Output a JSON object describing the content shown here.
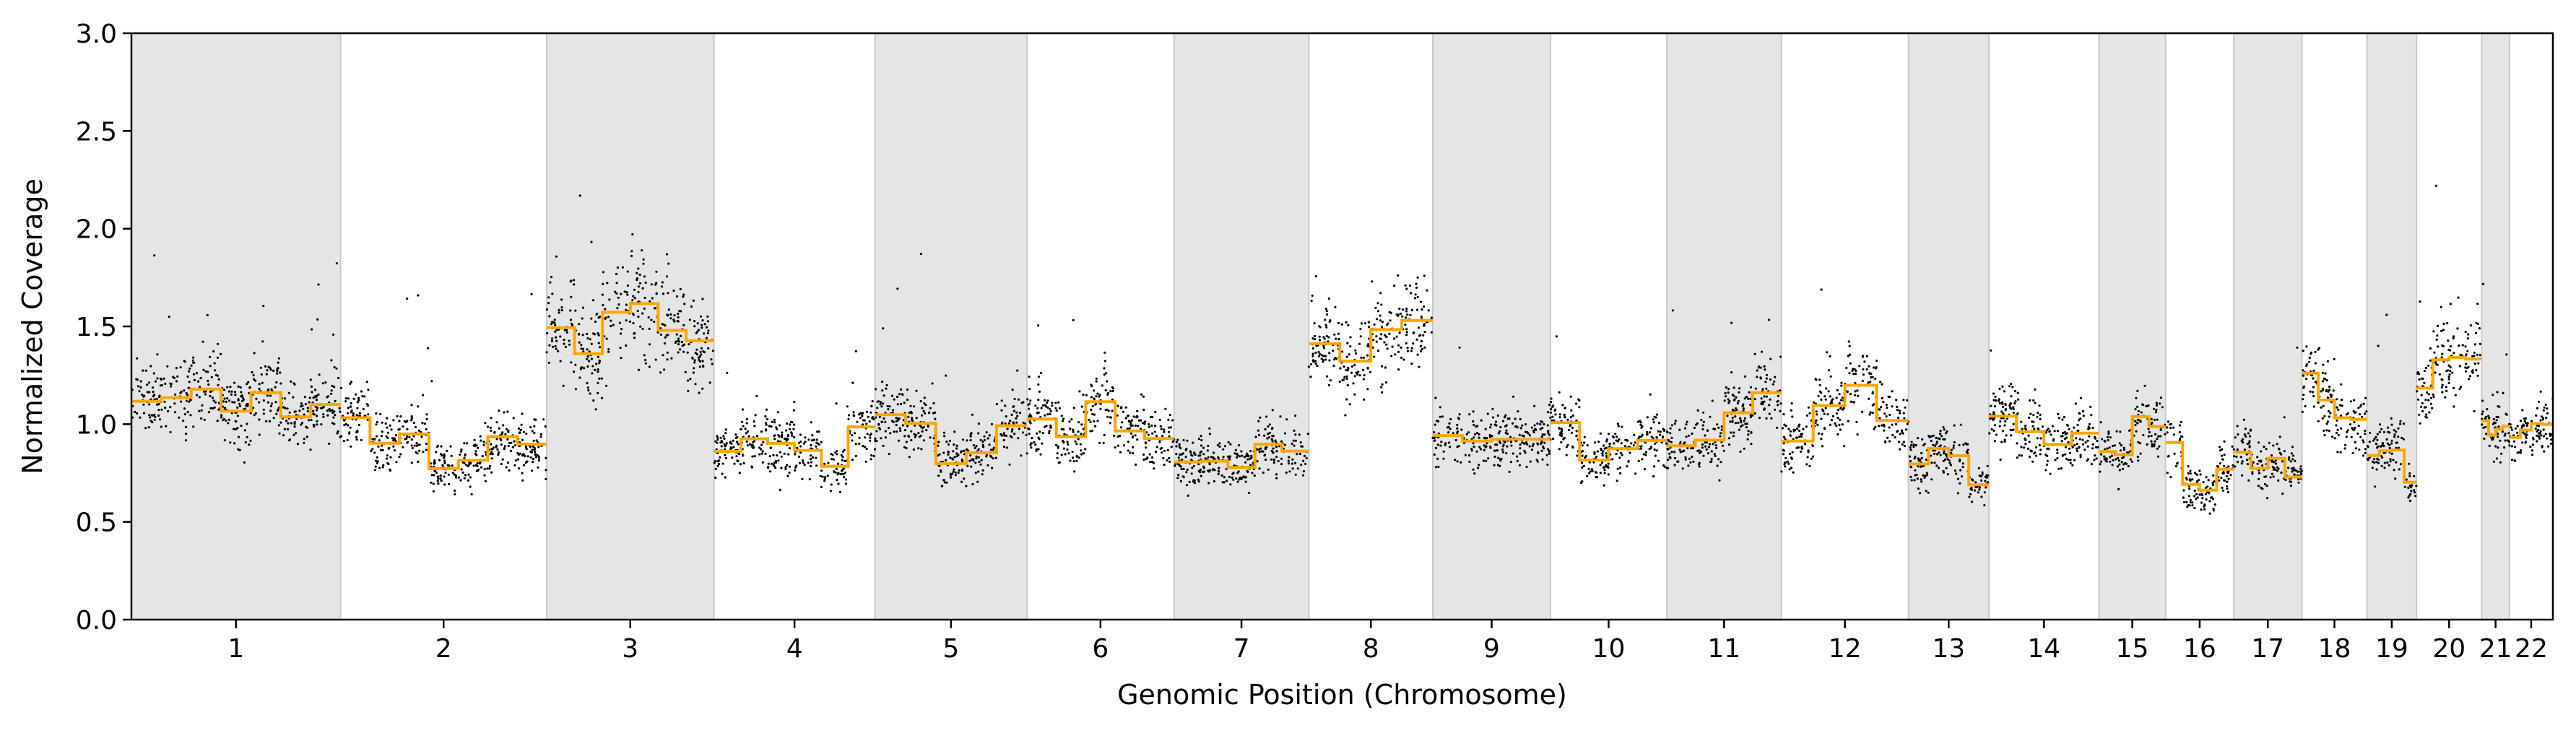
{
  "chart_data": {
    "type": "scatter",
    "title": "",
    "xlabel": "Genomic Position (Chromosome)",
    "ylabel": "Normalized Coverage",
    "ylim": [
      0,
      3
    ],
    "y_ticks": [
      "0.0",
      "0.5",
      "1.0",
      "1.5",
      "2.0",
      "2.5",
      "3.0"
    ],
    "grid": false,
    "shaded_bands": "alternating chromosomes shaded light gray",
    "colors": {
      "points": "#000000",
      "segment_line": "#FFA500",
      "band": "#e5e5e5",
      "band_edge": "#c8c8c8"
    },
    "chromosomes": [
      {
        "name": "1",
        "start": 0,
        "end": 1.35,
        "mean": 1.02
      },
      {
        "name": "2",
        "start": 1.35,
        "end": 2.68,
        "mean": 0.98
      },
      {
        "name": "3",
        "start": 2.68,
        "end": 3.76,
        "mean": 1.4
      },
      {
        "name": "4",
        "start": 3.76,
        "end": 4.8,
        "mean": 0.92
      },
      {
        "name": "5",
        "start": 4.8,
        "end": 5.78,
        "mean": 1.03
      },
      {
        "name": "6",
        "start": 5.78,
        "end": 6.73,
        "mean": 1.0
      },
      {
        "name": "7",
        "start": 6.73,
        "end": 7.6,
        "mean": 0.85
      },
      {
        "name": "8",
        "start": 7.6,
        "end": 8.4,
        "mean": 1.55
      },
      {
        "name": "9",
        "start": 8.4,
        "end": 9.16,
        "mean": 0.88
      },
      {
        "name": "10",
        "start": 9.16,
        "end": 9.91,
        "mean": 0.95
      },
      {
        "name": "11",
        "start": 9.91,
        "end": 10.65,
        "mean": 1.05
      },
      {
        "name": "12",
        "start": 10.65,
        "end": 11.47,
        "mean": 0.92
      },
      {
        "name": "13",
        "start": 11.47,
        "end": 11.99,
        "mean": 0.85
      },
      {
        "name": "14",
        "start": 11.99,
        "end": 12.7,
        "mean": 1.0
      },
      {
        "name": "15",
        "start": 12.7,
        "end": 13.13,
        "mean": 1.0
      },
      {
        "name": "16",
        "start": 13.13,
        "end": 13.57,
        "mean": 0.85
      },
      {
        "name": "17",
        "start": 13.57,
        "end": 14.01,
        "mean": 0.8
      },
      {
        "name": "18",
        "start": 14.01,
        "end": 14.43,
        "mean": 1.15
      },
      {
        "name": "19",
        "start": 14.43,
        "end": 14.75,
        "mean": 0.85
      },
      {
        "name": "20",
        "start": 14.75,
        "end": 15.17,
        "mean": 1.2
      },
      {
        "name": "21",
        "start": 15.17,
        "end": 15.35,
        "mean": 1.1
      },
      {
        "name": "22",
        "start": 15.35,
        "end": 15.63,
        "mean": 0.95
      }
    ]
  }
}
